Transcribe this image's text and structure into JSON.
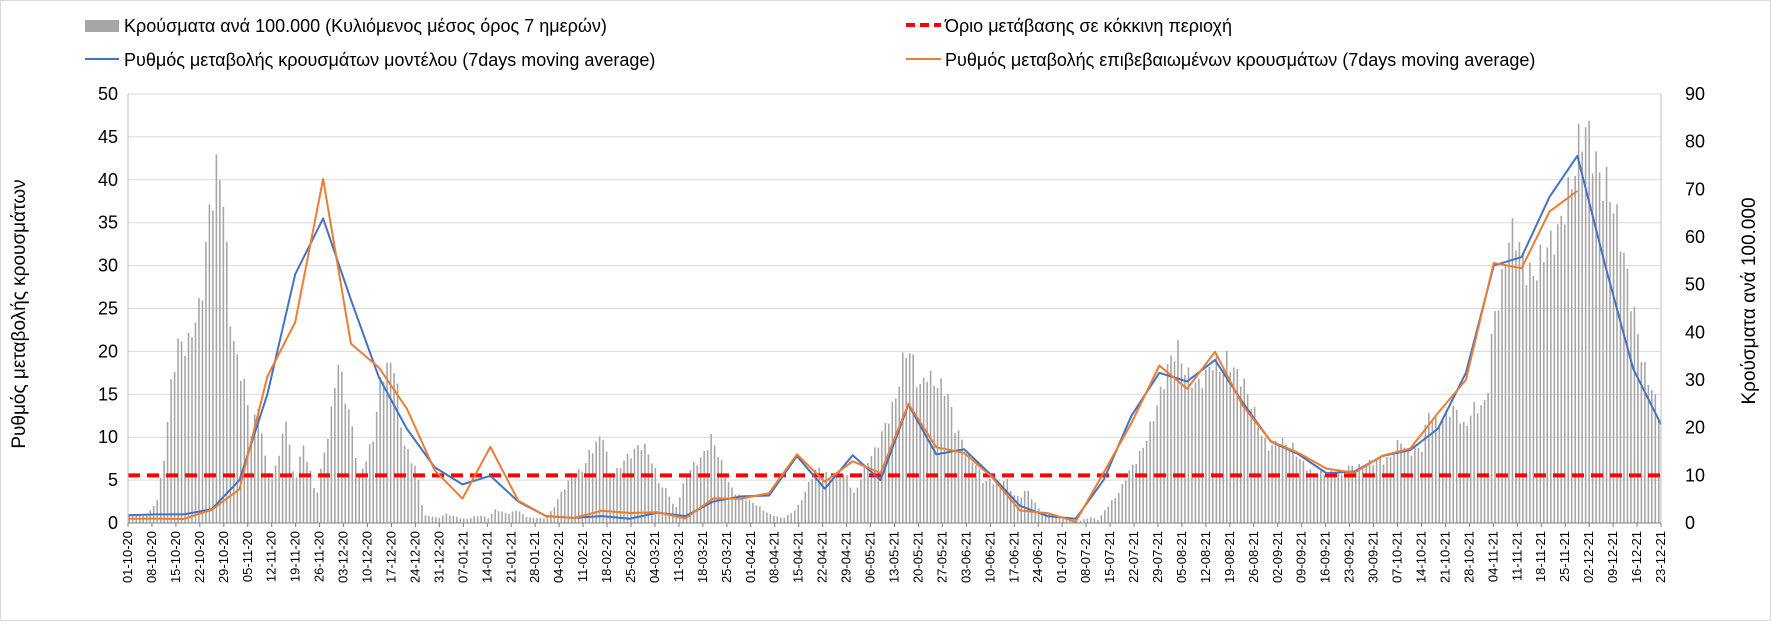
{
  "chart_data": {
    "type": "bar+line",
    "title": "",
    "ylabel_left": "Ρυθμός μεταβολής κρουσμάτων",
    "ylabel_right": "Κρούσματα ανά 100.000",
    "ylim_left": [
      0,
      50
    ],
    "ylim_right": [
      0,
      90
    ],
    "yticks_left": [
      0,
      5,
      10,
      15,
      20,
      25,
      30,
      35,
      40,
      45,
      50
    ],
    "yticks_right": [
      0,
      10,
      20,
      30,
      40,
      50,
      60,
      70,
      80,
      90
    ],
    "grid": true,
    "legend_position": "top",
    "x_tick_labels": [
      "01-10-20",
      "08-10-20",
      "15-10-20",
      "22-10-20",
      "29-10-20",
      "05-11-20",
      "12-11-20",
      "19-11-20",
      "26-11-20",
      "03-12-20",
      "10-12-20",
      "17-12-20",
      "24-12-20",
      "31-12-20",
      "07-01-21",
      "14-01-21",
      "21-01-21",
      "28-01-21",
      "04-02-21",
      "11-02-21",
      "18-02-21",
      "25-02-21",
      "04-03-21",
      "11-03-21",
      "18-03-21",
      "25-03-21",
      "01-04-21",
      "08-04-21",
      "15-04-21",
      "22-04-21",
      "29-04-21",
      "06-05-21",
      "13-05-21",
      "20-05-21",
      "27-05-21",
      "03-06-21",
      "10-06-21",
      "17-06-21",
      "24-06-21",
      "01-07-21",
      "08-07-21",
      "15-07-21",
      "22-07-21",
      "29-07-21",
      "05-08-21",
      "12-08-21",
      "19-08-21",
      "26-08-21",
      "02-09-21",
      "09-09-21",
      "16-09-21",
      "23-09-21",
      "30-09-21",
      "07-10-21",
      "14-10-21",
      "21-10-21",
      "28-10-21",
      "04-11-21",
      "11-11-21",
      "18-11-21",
      "25-11-21",
      "02-12-21",
      "09-12-21",
      "16-12-21",
      "23-12-21"
    ],
    "threshold": {
      "name": "Όριο μετάβασης σε κόκκινη περιοχή",
      "value": 10,
      "axis": "right",
      "color": "#ff0000"
    },
    "series": [
      {
        "name": "Κρούσματα ανά 100.000 (Κυλιόμενος μέσος όρος 7 ημερών)",
        "type": "bar",
        "axis": "right",
        "color": "#a6a6a6",
        "weekly_values": [
          1.6,
          1.8,
          1.5,
          2.6,
          5,
          15,
          33,
          40,
          36,
          40,
          45,
          65,
          77,
          72,
          42,
          33,
          30,
          20,
          25,
          12,
          8.5,
          16,
          23,
          7.5,
          16,
          12,
          5,
          14,
          22,
          34,
          26,
          20,
          10,
          14,
          18,
          29,
          32,
          34,
          19,
          14,
          11,
          1.5,
          1.5,
          1,
          2,
          1.5,
          1,
          0.8,
          1.4,
          1.6,
          1,
          2.8,
          2.2,
          2,
          3,
          1.5,
          1,
          1,
          1,
          3,
          6,
          8,
          10,
          11,
          15,
          17,
          18,
          9,
          11,
          14,
          15,
          16,
          15,
          12,
          8,
          7,
          2.5,
          7,
          11,
          13,
          15,
          18,
          14,
          10,
          7,
          6,
          5,
          4,
          3,
          2,
          1.5,
          1,
          1.8,
          3,
          6,
          10,
          12,
          10,
          9,
          10,
          10,
          6,
          10,
          13,
          15,
          20,
          24,
          28,
          35,
          34,
          28,
          33,
          30,
          28,
          26,
          20,
          18,
          14,
          12,
          8,
          9,
          8,
          10,
          6,
          5,
          7,
          4.5,
          2.5,
          2,
          1.2,
          0.8,
          0.5,
          0.3,
          0.8,
          1.2,
          0.6,
          3,
          5,
          7,
          10,
          12,
          15,
          20,
          25,
          29,
          33,
          36,
          33,
          31,
          29,
          30,
          33,
          33,
          36,
          32,
          29,
          25,
          22,
          18,
          16,
          17,
          16,
          16,
          14,
          12,
          10,
          10,
          10,
          11,
          10,
          12,
          11,
          12,
          13,
          14,
          13,
          14,
          17,
          15,
          16,
          16,
          23,
          20,
          22,
          25,
          24,
          19,
          23,
          24,
          26,
          45,
          48,
          57,
          60,
          57,
          54,
          53,
          55,
          57,
          62,
          70,
          73,
          78,
          80,
          77,
          75,
          72,
          63,
          55,
          48,
          42,
          33,
          28,
          22
        ]
      },
      {
        "name": "Ρυθμός μεταβολής κρουσμάτων μοντέλου (7days moving average)",
        "type": "line",
        "axis": "left",
        "color": "#4472c4",
        "weekly_values": [
          0.9,
          1,
          1,
          1.6,
          5,
          15,
          29,
          35.5,
          26,
          17,
          11,
          6.5,
          4.5,
          5.5,
          2.5,
          0.8,
          0.6,
          0.8,
          0.5,
          1.2,
          0.8,
          2.5,
          3.1,
          3.2,
          7.8,
          4,
          7.9,
          5,
          13.8,
          8,
          8.6,
          5.5,
          2,
          0.8,
          0.5,
          5,
          12.5,
          17.5,
          16.5,
          19,
          14,
          9.5,
          8,
          5.8,
          6,
          7.8,
          8.5,
          11,
          17.5,
          30,
          31,
          38,
          42.8,
          30,
          18,
          11.5
        ]
      },
      {
        "name": "Ρυθμός μεταβολής επιβεβαιωμένων κρουσμάτων (7days moving average)",
        "type": "line",
        "axis": "left",
        "color": "#ed7d31",
        "weekly_values": [
          0.5,
          0.5,
          0.5,
          1.5,
          4,
          17,
          23.5,
          40,
          21,
          18,
          13.5,
          6,
          3,
          8.7,
          2.8,
          0.6,
          0.8,
          1.2,
          1.4,
          1,
          0.8,
          2.6,
          3.1,
          3.2,
          8.3,
          4.5,
          7.5,
          5.5,
          14.2,
          8.5,
          8.5,
          5,
          1.8,
          0.8,
          0.5,
          5.5,
          12,
          18,
          16,
          19.6,
          14,
          9.2,
          8.5,
          6,
          6.2,
          7.5,
          9,
          12.5,
          17,
          30,
          30,
          36,
          39
        ]
      }
    ],
    "legend": {
      "bar_label": "Κρούσματα ανά 100.000 (Κυλιόμενος μέσος όρος 7 ημερών)",
      "threshold_label": "Όριο μετάβασης σε κόκκινη περιοχή",
      "model_label": "Ρυθμός μεταβολής κρουσμάτων μοντέλου (7days moving average)",
      "confirmed_label": "Ρυθμός μεταβολής επιβεβαιωμένων κρουσμάτων (7days moving average)"
    }
  }
}
